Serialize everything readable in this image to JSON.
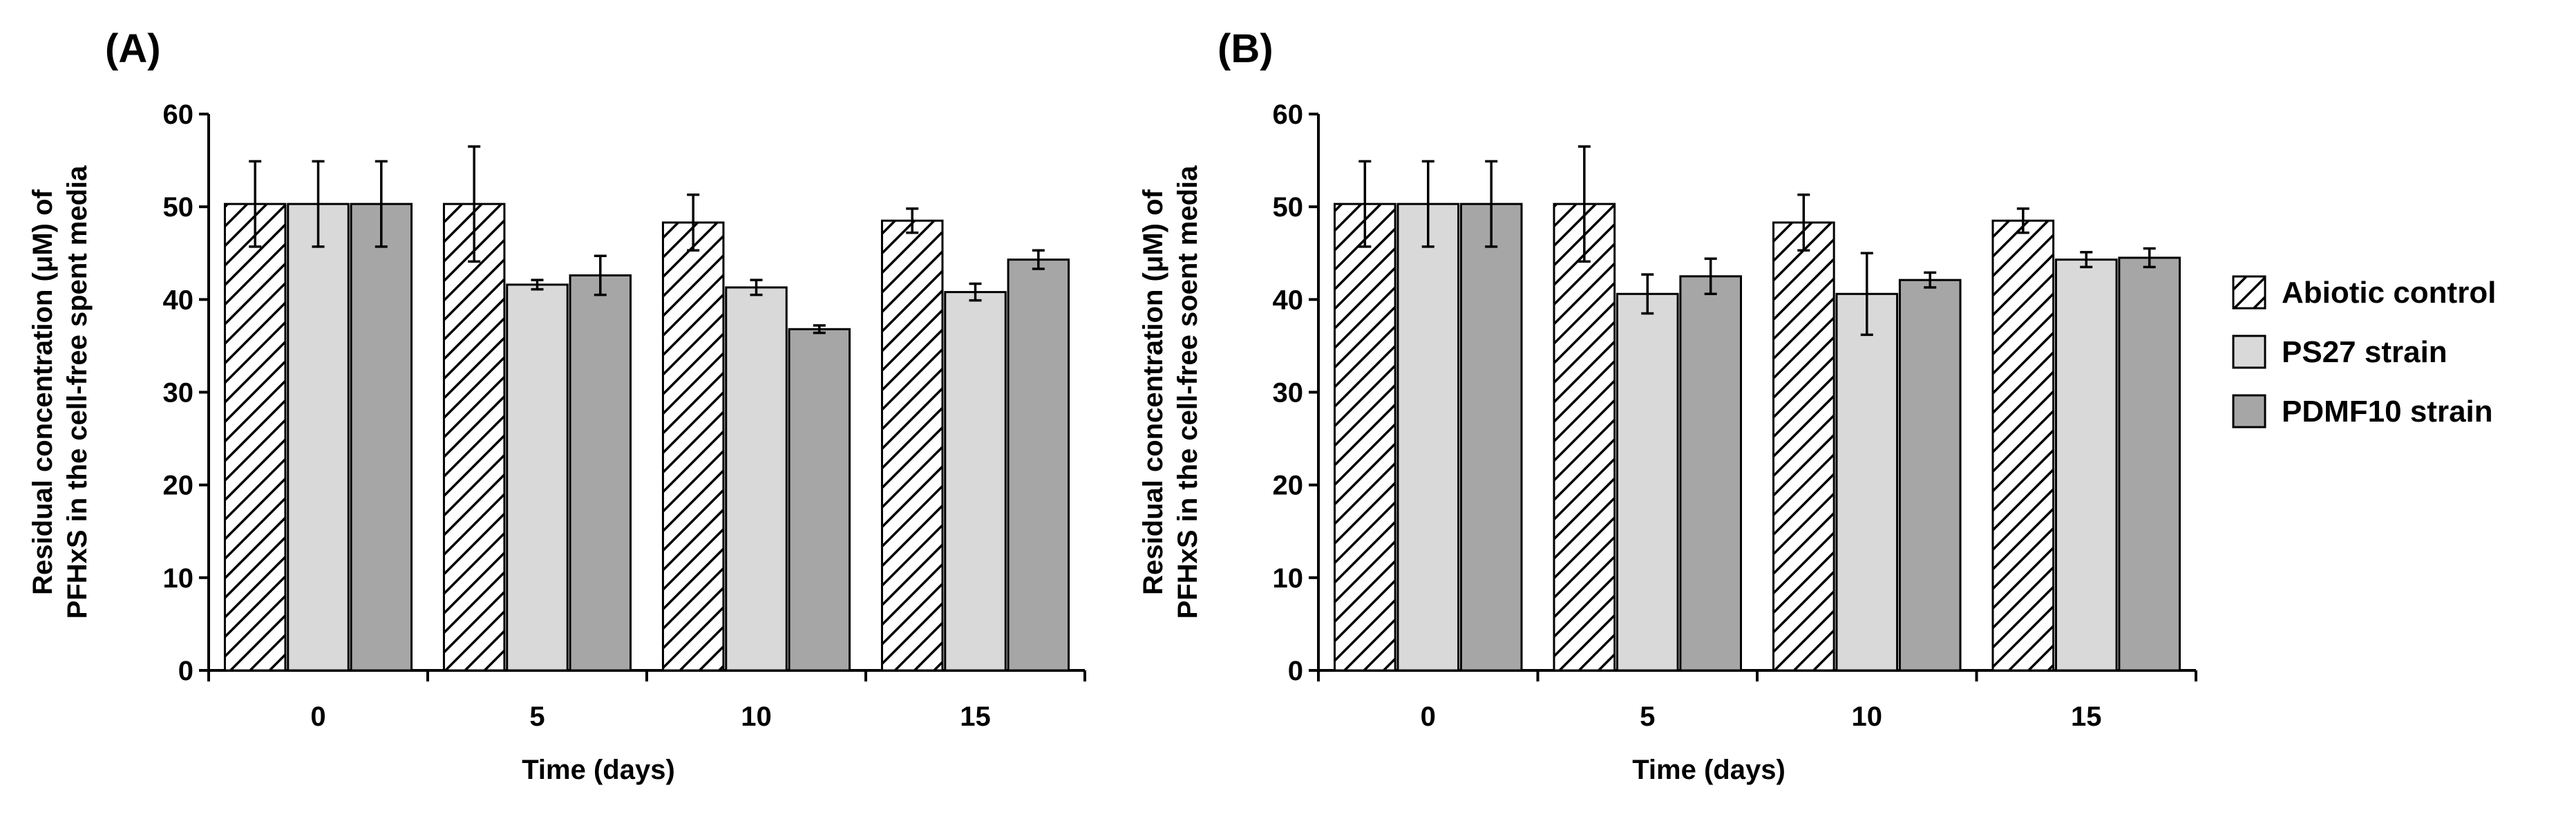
{
  "chart_data": [
    {
      "type": "bar",
      "panel_label": "(A)",
      "categories": [
        "0",
        "5",
        "10",
        "15"
      ],
      "xlabel": "Time (days)",
      "ylabel_lines": [
        "Residual concentration (μM) of",
        "PFHxS in the cell-free spent media"
      ],
      "ylim": [
        0,
        60
      ],
      "yticks": [
        0,
        10,
        20,
        30,
        40,
        50,
        60
      ],
      "series": [
        {
          "name": "Abiotic control",
          "values": [
            50.3,
            50.3,
            48.3,
            48.5
          ],
          "errors": [
            4.6,
            6.2,
            3.0,
            1.3
          ]
        },
        {
          "name": "PS27 strain",
          "values": [
            50.3,
            41.6,
            41.3,
            40.8
          ],
          "errors": [
            4.6,
            0.5,
            0.8,
            0.9
          ]
        },
        {
          "name": "PDMF10 strain",
          "values": [
            50.3,
            42.6,
            36.8,
            44.3
          ],
          "errors": [
            4.6,
            2.1,
            0.4,
            1.0
          ]
        }
      ]
    },
    {
      "type": "bar",
      "panel_label": "(B)",
      "categories": [
        "0",
        "5",
        "10",
        "15"
      ],
      "xlabel": "Time (days)",
      "ylabel_lines": [
        "Residual concentration (μM) of",
        "PFHxS in the cell-free soent media"
      ],
      "ylim": [
        0,
        60
      ],
      "yticks": [
        0,
        10,
        20,
        30,
        40,
        50,
        60
      ],
      "series": [
        {
          "name": "Abiotic control",
          "values": [
            50.3,
            50.3,
            48.3,
            48.5
          ],
          "errors": [
            4.6,
            6.2,
            3.0,
            1.3
          ]
        },
        {
          "name": "PS27 strain",
          "values": [
            50.3,
            40.6,
            40.6,
            44.3
          ],
          "errors": [
            4.6,
            2.1,
            4.4,
            0.8
          ]
        },
        {
          "name": "PDMF10 strain",
          "values": [
            50.3,
            42.5,
            42.1,
            44.5
          ],
          "errors": [
            4.6,
            1.9,
            0.8,
            1.0
          ]
        }
      ]
    }
  ],
  "legend": {
    "entries": [
      "Abiotic control",
      "PS27 strain",
      "PDMF10 strain"
    ],
    "placement": "right"
  },
  "colors": {
    "abiotic_fill": "#ffffff",
    "abiotic_hatch": "#000000",
    "ps27_fill": "#d9d9d9",
    "pdmf10_fill": "#a6a6a6",
    "axis": "#000000"
  }
}
